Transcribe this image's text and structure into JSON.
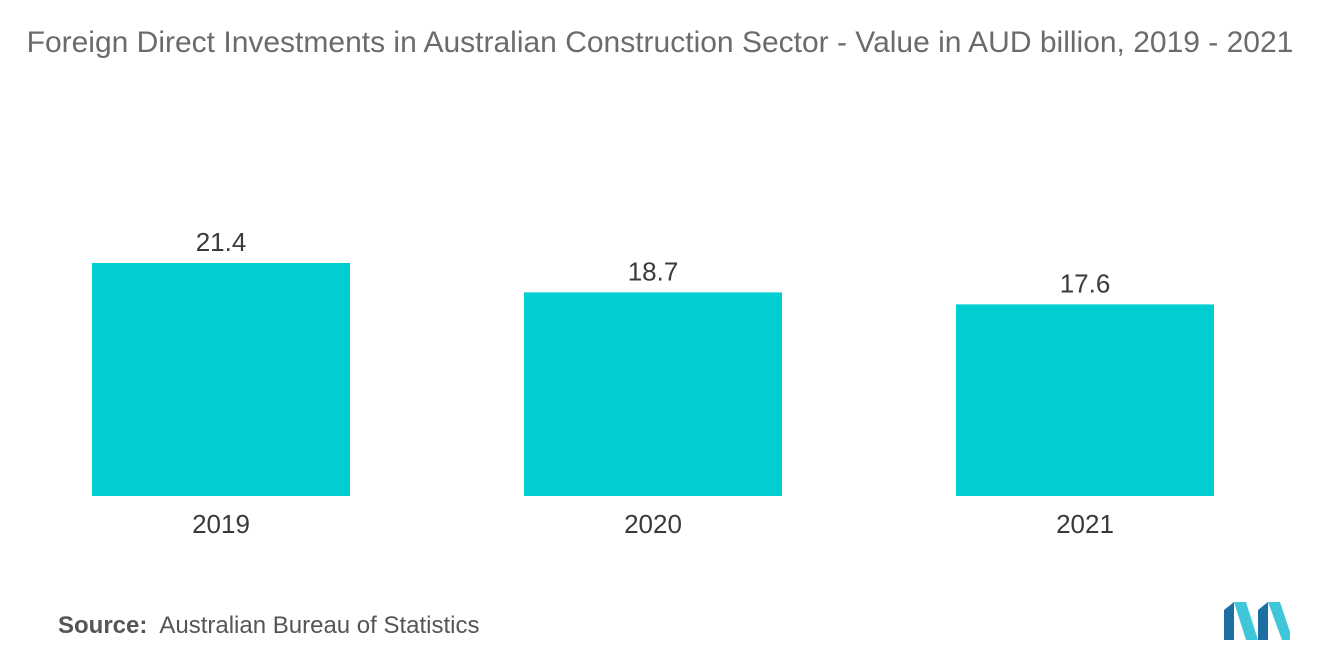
{
  "chart_data": {
    "type": "bar",
    "title": "Foreign Direct Investments in Australian Construction Sector - Value in AUD billion, 2019 - 2021",
    "categories": [
      "2019",
      "2020",
      "2021"
    ],
    "values": [
      21.4,
      18.7,
      17.6
    ],
    "xlabel": "",
    "ylabel": "",
    "ylim": [
      0,
      21.4
    ],
    "grid": false,
    "legend": "none",
    "bar_color": "#00CED1",
    "data_labels": true
  },
  "source": {
    "label": "Source:",
    "text": "Australian Bureau of Statistics"
  },
  "logo": {
    "icon": "mordor-intelligence-logo-icon",
    "colors": [
      "#1d6fa3",
      "#3fc6d8"
    ]
  }
}
